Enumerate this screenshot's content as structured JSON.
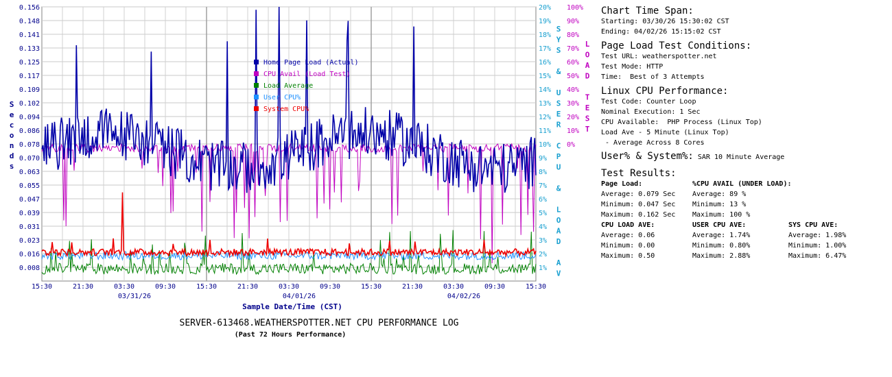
{
  "chart_data": {
    "type": "line",
    "title": "SERVER-613468.WEATHERSPOTTER.NET CPU PERFORMANCE LOG",
    "subtitle": "(Past 72 Hours Performance)",
    "xlabel": "Sample Date/Time (CST)",
    "ylabel_left": "Seconds",
    "ylabel_right_1": "SYS & USER CPU & LOAD AV",
    "ylabel_right_2": "LOAD TEST",
    "left_ticks": [
      "0.156",
      "0.148",
      "0.141",
      "0.133",
      "0.125",
      "0.117",
      "0.109",
      "0.102",
      "0.094",
      "0.086",
      "0.078",
      "0.070",
      "0.063",
      "0.055",
      "0.047",
      "0.039",
      "0.031",
      "0.023",
      "0.016",
      "0.008"
    ],
    "ylim_left": [
      0,
      0.156
    ],
    "right1_ticks": [
      "20%",
      "19%",
      "18%",
      "17%",
      "16%",
      "15%",
      "14%",
      "13%",
      "12%",
      "11%",
      "10%",
      "9%",
      "8%",
      "7%",
      "6%",
      "5%",
      "4%",
      "3%",
      "2%",
      "1%"
    ],
    "ylim_right1": [
      0,
      20
    ],
    "right2_ticks": [
      "100%",
      "90%",
      "80%",
      "70%",
      "60%",
      "50%",
      "40%",
      "30%",
      "20%",
      "10%",
      "0%"
    ],
    "ylim_right2": [
      0,
      100
    ],
    "x_ticks": [
      "15:30",
      "21:30",
      "03:30",
      "09:30",
      "15:30",
      "21:30",
      "03:30",
      "09:30",
      "15:30",
      "21:30",
      "03:30",
      "09:30",
      "15:30"
    ],
    "date_labels": [
      {
        "label": "03/31/26",
        "tick_index": 2.25
      },
      {
        "label": "04/01/26",
        "tick_index": 6.25
      },
      {
        "label": "04/02/26",
        "tick_index": 10.25
      }
    ],
    "grid": true,
    "legend_position": "center-top",
    "series": [
      {
        "name": "Home Page Load (Actual)",
        "color": "#0000a8",
        "axis": "left",
        "summary": {
          "average": 0.079,
          "minimum": 0.047,
          "maximum": 0.162
        }
      },
      {
        "name": "CPU Avail (Load Test)",
        "color": "#c000c0",
        "axis": "right2",
        "summary": {
          "average": 89,
          "minimum": 13,
          "maximum": 100
        }
      },
      {
        "name": "Load Average",
        "color": "#008000",
        "axis": "right1",
        "summary": {
          "average": 0.06,
          "minimum": 0.0,
          "maximum": 0.5
        }
      },
      {
        "name": "User CPU%",
        "color": "#1e90ff",
        "axis": "right1",
        "summary": {
          "average": 1.74,
          "minimum": 0.8,
          "maximum": 2.88
        }
      },
      {
        "name": "System CPU%",
        "color": "#ee0000",
        "axis": "right1",
        "summary": {
          "average": 1.98,
          "minimum": 1.0,
          "maximum": 6.47
        }
      }
    ]
  },
  "info": {
    "span_title": "Chart Time Span:",
    "starting": "Starting: 03/30/26 15:30:02 CST",
    "ending": "Ending: 04/02/26 15:15:02 CST",
    "conditions_title": "Page Load Test Conditions:",
    "test_url": "Test URL: weatherspotter.net",
    "test_mode": "Test Mode: HTTP",
    "time": "Time:  Best of 3 Attempts",
    "cpu_title": "Linux CPU Performance:",
    "test_code": "Test Code: Counter Loop",
    "nominal": "Nominal Execution: 1 Sec",
    "cpu_available": "CPU Available:  PHP Process (Linux Top)",
    "load_ave": "Load Ave - 5 Minute (Linux Top)",
    "load_ave_note": " - Average Across 8 Cores",
    "usersys_title": "User% & System%:",
    "usersys_note": "SAR 10 Minute Average",
    "results_title": "Test Results:",
    "page_load": {
      "title": "Page Load:",
      "average": "Average: 0.079 Sec",
      "minimum": "Minimum: 0.047 Sec",
      "maximum": "Maximum: 0.162 Sec"
    },
    "cpu_avail": {
      "title": "%CPU AVAIL (UNDER LOAD):",
      "average": "Average: 89 %",
      "minimum": "Minimum: 13 %",
      "maximum": "Maximum: 100 %"
    },
    "cpu_load": {
      "title": "CPU LOAD AVE:",
      "average": "Average: 0.06",
      "minimum": "Minimum: 0.00",
      "maximum": "Maximum: 0.50"
    },
    "user_cpu": {
      "title": "USER CPU AVE:",
      "average": "Average: 1.74%",
      "minimum": "Minimum: 0.80%",
      "maximum": "Maximum: 2.88%"
    },
    "sys_cpu": {
      "title": "SYS CPU AVE:",
      "average": "Average: 1.98%",
      "minimum": "Minimum: 1.00%",
      "maximum": "Maximum: 6.47%"
    }
  }
}
